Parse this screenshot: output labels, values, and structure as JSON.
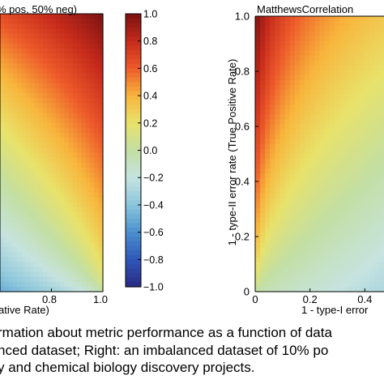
{
  "colors": {
    "colormap": [
      "#2a2a85",
      "#2f57b8",
      "#4b90cf",
      "#8cc6dc",
      "#c6e3e0",
      "#c3dfa3",
      "#e8e26a",
      "#f8b53c",
      "#ed5a2a",
      "#c52a1b",
      "#7a1212"
    ],
    "text": "#000000"
  },
  "chart_data": [
    {
      "type": "heatmap",
      "title": "% pos, 50% neg)",
      "xlabel": "ative Rate)",
      "ylabel": "",
      "x_ticks": [
        "0.8",
        "1.0"
      ],
      "y_ticks": [],
      "xlim_visible": [
        0.6,
        1.0
      ],
      "ylim": [
        0,
        1.0
      ],
      "colormap": "jet",
      "grid": false,
      "description_values": "MCC for balanced data; rises toward top-right (low FPR / high TPR corner), ~1.0 at top-right, ~-1.0 at bottom-left"
    },
    {
      "type": "colorbar",
      "ticks": [
        "1.0",
        "0.8",
        "0.6",
        "0.4",
        "0.2",
        "0.0",
        "−0.2",
        "−0.4",
        "−0.6",
        "−0.8",
        "−1.0"
      ],
      "tick_values": [
        1.0,
        0.8,
        0.6,
        0.4,
        0.2,
        0.0,
        -0.2,
        -0.4,
        -0.6,
        -0.8,
        -1.0
      ],
      "range": [
        -1.0,
        1.0
      ]
    },
    {
      "type": "heatmap",
      "title": "MatthewsCorrelation",
      "xlabel": "1 - type-I error",
      "ylabel": "1 - type-II error rate (True Positive Rate)",
      "x_ticks": [
        "0",
        "0.2",
        "0.4"
      ],
      "y_ticks": [
        "0",
        "0.2",
        "0.4",
        "0.6",
        "0.8",
        "1.0"
      ],
      "xlim_visible": [
        0,
        0.45
      ],
      "ylim": [
        0,
        1.0
      ],
      "colormap": "jet",
      "grid": false
    }
  ],
  "caption": {
    "line1": "rmation about metric performance as a function of data",
    "line2": "nced dataset; Right: an imbalanced dataset of 10% po",
    "line3": "y and chemical biology discovery projects."
  }
}
